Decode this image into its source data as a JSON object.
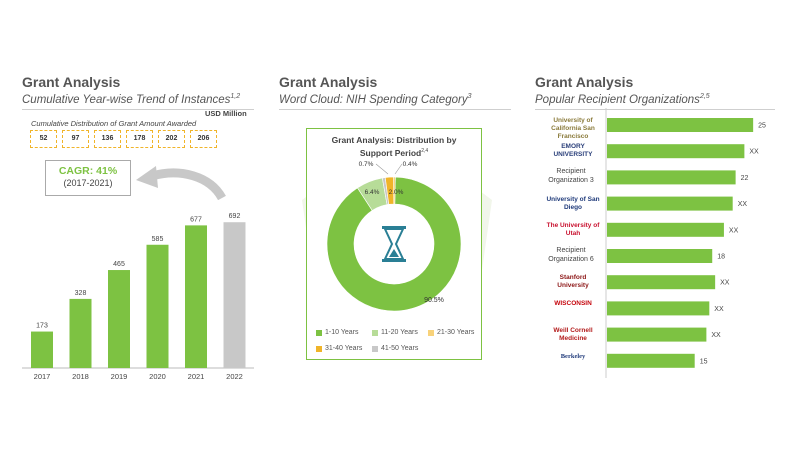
{
  "panels": {
    "p1": {
      "title": "Grant Analysis",
      "subtitle": "Cumulative Year-wise Trend of Instances",
      "sup": "1,2"
    },
    "p2": {
      "title": "Grant Analysis",
      "subtitle": "Word Cloud: NIH Spending Category",
      "sup": "3"
    },
    "p3": {
      "title": "Grant Analysis",
      "subtitle": "Popular Recipient Organizations",
      "sup": "2,5"
    }
  },
  "cumulative": {
    "title": "Cumulative Distribution of Grant Amount Awarded",
    "unit": "USD Million",
    "values": [
      "52",
      "97",
      "136",
      "178",
      "202",
      "206"
    ]
  },
  "cagr": {
    "value": "CAGR: 41%",
    "period": "(2017-2021)"
  },
  "donut_card": {
    "title_line1": "Grant Analysis: Distribution by",
    "title_line2": "Support Period",
    "sup": "2,4"
  },
  "legend": [
    {
      "label": "1-10 Years",
      "color": "#7dc242"
    },
    {
      "label": "11-20 Years",
      "color": "#b7dc98"
    },
    {
      "label": "21-30 Years",
      "color": "#f8d27a"
    },
    {
      "label": "31-40 Years",
      "color": "#f0b429"
    },
    {
      "label": "41-50 Years",
      "color": "#c8c8c8"
    }
  ],
  "orgs": [
    {
      "label": "",
      "logo": "University of California San Francisco",
      "value": "25"
    },
    {
      "label": "",
      "logo": "EMORY UNIVERSITY",
      "value": "XX"
    },
    {
      "label": "Recipient Organization 3",
      "logo": "",
      "value": "22"
    },
    {
      "label": "",
      "logo": "University of San Diego",
      "value": "XX"
    },
    {
      "label": "",
      "logo": "The University of Utah",
      "value": "XX"
    },
    {
      "label": "Recipient Organization 6",
      "logo": "",
      "value": "18"
    },
    {
      "label": "",
      "logo": "Stanford University",
      "value": "XX"
    },
    {
      "label": "",
      "logo": "WISCONSIN",
      "value": "XX"
    },
    {
      "label": "",
      "logo": "Weill Cornell Medicine",
      "value": "XX"
    },
    {
      "label": "",
      "logo": "Berkeley",
      "value": "15"
    }
  ],
  "chart_data": [
    {
      "type": "bar",
      "categories": [
        "2017",
        "2018",
        "2019",
        "2020",
        "2021",
        "2022"
      ],
      "values": [
        173,
        328,
        465,
        585,
        677,
        692
      ],
      "colors": [
        "#7dc242",
        "#7dc242",
        "#7dc242",
        "#7dc242",
        "#7dc242",
        "#c8c8c8"
      ],
      "ylim": [
        0,
        750
      ]
    },
    {
      "type": "pie",
      "title": "Grant Analysis: Distribution by Support Period",
      "categories": [
        "1-10 Years",
        "11-20 Years",
        "21-30 Years",
        "31-40 Years",
        "41-50 Years"
      ],
      "values": [
        90.5,
        6.4,
        0.4,
        2.0,
        0.7
      ],
      "labels": [
        "90.5%",
        "6.4%",
        "0.4%",
        "2.0%",
        "0.7%"
      ],
      "colors": [
        "#7dc242",
        "#b7dc98",
        "#f8d27a",
        "#f0b429",
        "#c8c8c8"
      ]
    },
    {
      "type": "bar",
      "orientation": "horizontal",
      "values": [
        25,
        23.5,
        22,
        21.5,
        20,
        18,
        18.5,
        17.5,
        17,
        15
      ],
      "value_labels": [
        "25",
        "XX",
        "22",
        "XX",
        "XX",
        "18",
        "XX",
        "XX",
        "XX",
        "15"
      ],
      "xlim": [
        0,
        26
      ]
    }
  ]
}
